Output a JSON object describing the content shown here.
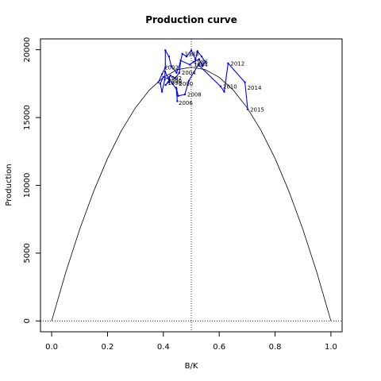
{
  "chart_data": {
    "type": "line",
    "title": "Production curve",
    "xlabel": "B/K",
    "ylabel": "Production",
    "xlim": [
      -0.04,
      1.04
    ],
    "ylim": [
      -800,
      20800
    ],
    "x_ticks": [
      0.0,
      0.2,
      0.4,
      0.6,
      0.8,
      1.0
    ],
    "x_tick_labels": [
      "0.0",
      "0.2",
      "0.4",
      "0.6",
      "0.8",
      "1.0"
    ],
    "y_ticks": [
      0,
      5000,
      10000,
      15000,
      20000
    ],
    "y_tick_labels": [
      "0",
      "5000",
      "10000",
      "15000",
      "20000"
    ],
    "grid": false,
    "colors": {
      "observed": "#0000ff",
      "curve": "#000000",
      "reference": "#000000"
    },
    "reference_lines": {
      "vertical_x": 0.5,
      "horizontal_y": 0,
      "style": "dotted"
    },
    "series": [
      {
        "type": "line",
        "style": "solid",
        "color": "#000000",
        "x": [
          0.0,
          0.05,
          0.1,
          0.15,
          0.2,
          0.25,
          0.3,
          0.35,
          0.4,
          0.45,
          0.5,
          0.55,
          0.6,
          0.65,
          0.7,
          0.75,
          0.8,
          0.85,
          0.9,
          0.95,
          1.0
        ],
        "y": [
          0,
          3555,
          6737,
          9544,
          11977,
          14035,
          15720,
          17030,
          17966,
          18527,
          18715,
          18527,
          17966,
          17030,
          15720,
          14035,
          11977,
          9544,
          6737,
          3555,
          0
        ]
      },
      {
        "type": "line",
        "style": "solid-with-points",
        "color": "#0000ff",
        "x": [
          0.382,
          0.395,
          0.407,
          0.407,
          0.42,
          0.428,
          0.447,
          0.46,
          0.468,
          0.483,
          0.5,
          0.515,
          0.522,
          0.537,
          0.55,
          0.54,
          0.528,
          0.508,
          0.495,
          0.462,
          0.457,
          0.442,
          0.425,
          0.417,
          0.408,
          0.423,
          0.4,
          0.389,
          0.395,
          0.405,
          0.406,
          0.418,
          0.432,
          0.447,
          0.45,
          0.446,
          0.453,
          0.477,
          0.491,
          0.525,
          0.605,
          0.618,
          0.632,
          0.692,
          0.702
        ],
        "y": [
          17600,
          18200,
          18700,
          19950,
          19500,
          18800,
          18300,
          19000,
          19700,
          19500,
          19950,
          19300,
          19900,
          19500,
          19100,
          18800,
          19300,
          19100,
          18900,
          19200,
          18300,
          17900,
          18100,
          17600,
          17400,
          17800,
          18000,
          17500,
          16900,
          17800,
          18400,
          17900,
          17500,
          17100,
          16200,
          17200,
          16600,
          16700,
          17700,
          18900,
          17300,
          16900,
          19000,
          17600,
          15600
        ]
      }
    ],
    "point_labels": [
      {
        "text": "1983",
        "x": 0.468,
        "y": 19700
      },
      {
        "text": "1986",
        "x": 0.5,
        "y": 19100
      },
      {
        "text": "1984",
        "x": 0.5,
        "y": 18900
      },
      {
        "text": "2012",
        "x": 0.632,
        "y": 19000
      },
      {
        "text": "2002",
        "x": 0.395,
        "y": 18700
      },
      {
        "text": "2004",
        "x": 0.457,
        "y": 18300
      },
      {
        "text": "1992",
        "x": 0.407,
        "y": 17900
      },
      {
        "text": "1990",
        "x": 0.407,
        "y": 17700
      },
      {
        "text": "1998",
        "x": 0.407,
        "y": 17550
      },
      {
        "text": "2000",
        "x": 0.447,
        "y": 17500
      },
      {
        "text": "2010",
        "x": 0.605,
        "y": 17300
      },
      {
        "text": "2014",
        "x": 0.692,
        "y": 17200
      },
      {
        "text": "2008",
        "x": 0.477,
        "y": 16700
      },
      {
        "text": "2006",
        "x": 0.446,
        "y": 16100
      },
      {
        "text": "2015",
        "x": 0.702,
        "y": 15600
      }
    ]
  }
}
